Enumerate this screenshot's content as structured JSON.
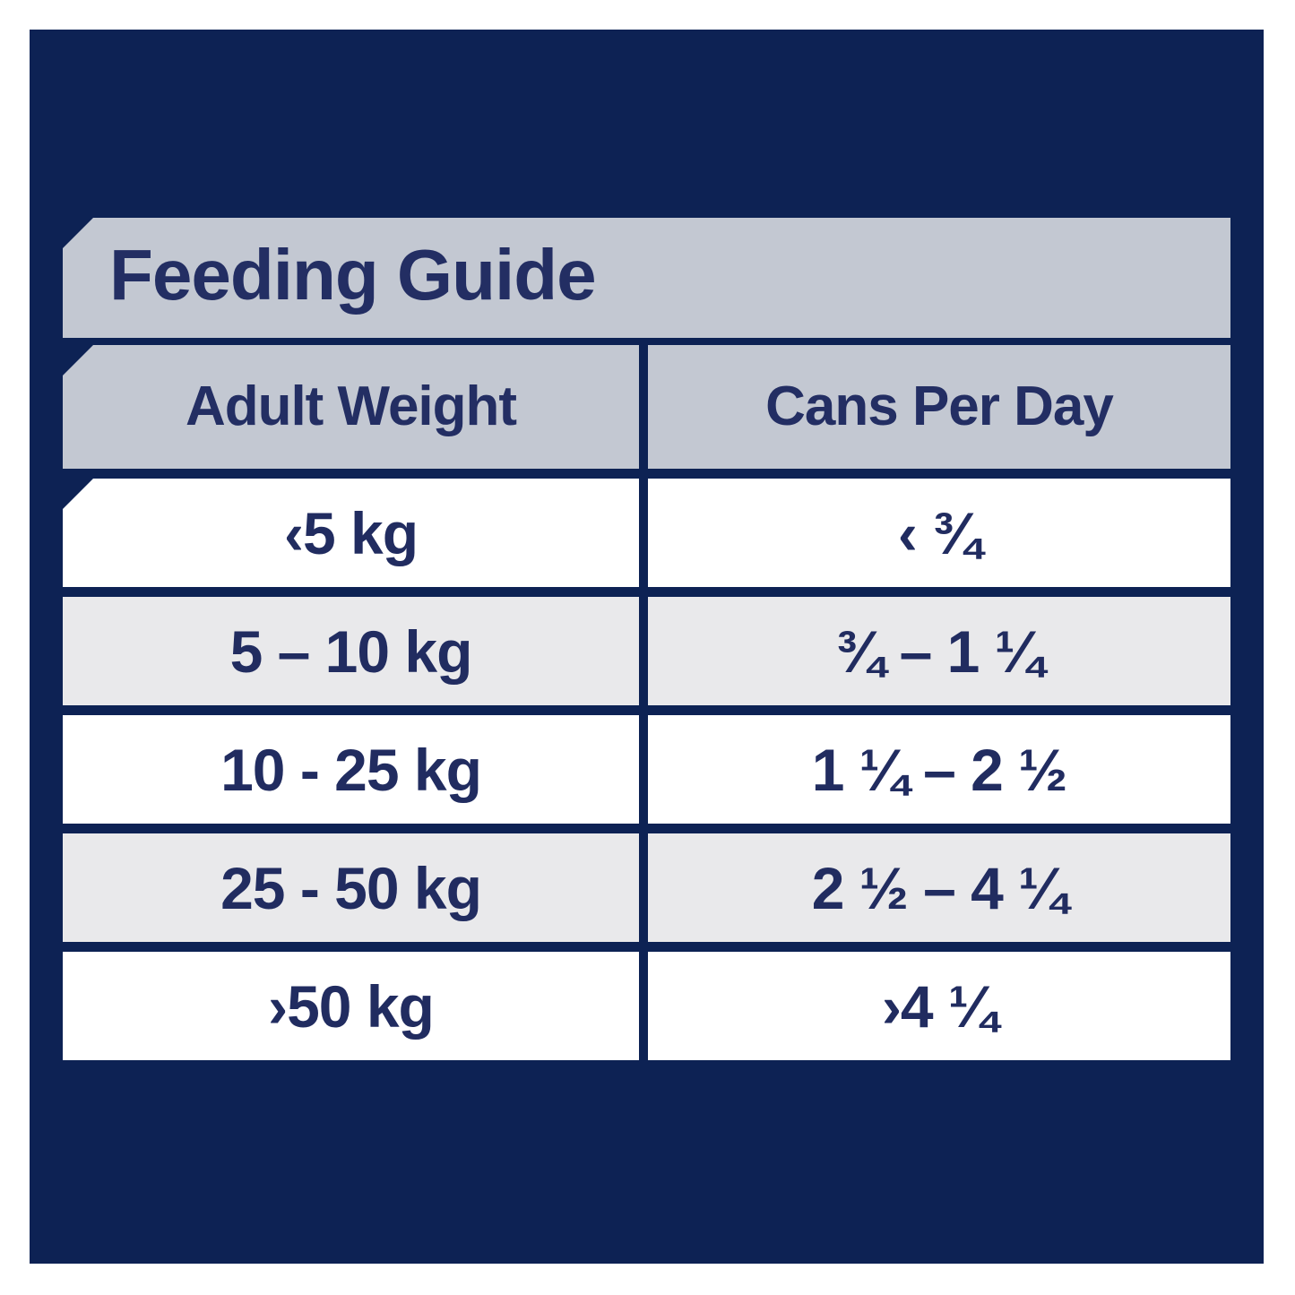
{
  "title": "Feeding Guide",
  "table": {
    "columns": [
      "Adult Weight",
      "Cans Per Day"
    ],
    "rows": [
      {
        "weight": "‹5 kg",
        "cans": "‹ ¾"
      },
      {
        "weight": "5 – 10 kg",
        "cans": "¾ – 1 ¼"
      },
      {
        "weight": "10 - 25 kg",
        "cans": "1 ¼ – 2 ½"
      },
      {
        "weight": "25 - 50 kg",
        "cans": "2 ½ – 4 ¼"
      },
      {
        "weight": "›50 kg",
        "cans": "›4 ¼"
      }
    ]
  },
  "colors": {
    "panel_navy": "#0d2254",
    "banner_gray": "#c3c8d2",
    "row_alt_gray": "#e9e9eb",
    "row_white": "#ffffff",
    "text_navy": "#232e63"
  }
}
